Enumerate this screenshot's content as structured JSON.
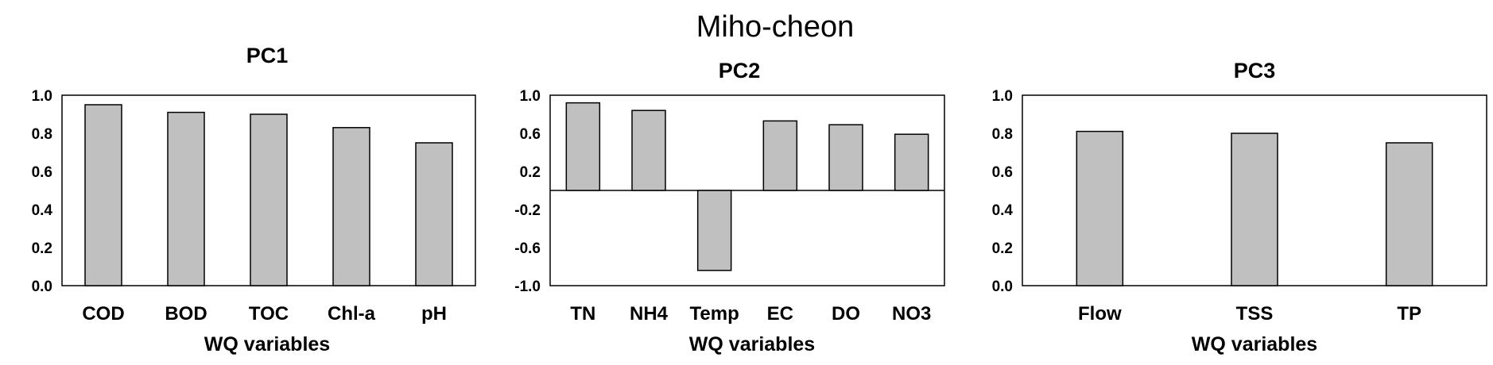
{
  "figure": {
    "title": "Miho-cheon"
  },
  "colors": {
    "bar_fill": "#c0c0c0",
    "bar_stroke": "#000000"
  },
  "chart_data": [
    {
      "type": "bar",
      "title": "PC1",
      "xlabel": "WQ variables",
      "ylabel": "",
      "ylim": [
        0.0,
        1.0
      ],
      "yticks": [
        "0.0",
        "0.2",
        "0.4",
        "0.6",
        "0.8",
        "1.0"
      ],
      "categories": [
        "COD",
        "BOD",
        "TOC",
        "Chl-a",
        "pH"
      ],
      "values": [
        0.95,
        0.91,
        0.9,
        0.83,
        0.75
      ],
      "grid": false,
      "legend": "none"
    },
    {
      "type": "bar",
      "title": "PC2",
      "xlabel": "WQ variables",
      "ylabel": "",
      "ylim": [
        -1.0,
        1.0
      ],
      "yticks": [
        "-1.0",
        "-0.6",
        "-0.2",
        "0.2",
        "0.6",
        "1.0"
      ],
      "categories": [
        "TN",
        "NH4",
        "Temp",
        "EC",
        "DO",
        "NO3"
      ],
      "values": [
        0.92,
        0.84,
        -0.84,
        0.73,
        0.69,
        0.59
      ],
      "grid": false,
      "legend": "none"
    },
    {
      "type": "bar",
      "title": "PC3",
      "xlabel": "WQ variables",
      "ylabel": "",
      "ylim": [
        0.0,
        1.0
      ],
      "yticks": [
        "0.0",
        "0.2",
        "0.4",
        "0.6",
        "0.8",
        "1.0"
      ],
      "categories": [
        "Flow",
        "TSS",
        "TP"
      ],
      "values": [
        0.81,
        0.8,
        0.75
      ],
      "grid": false,
      "legend": "none"
    }
  ]
}
